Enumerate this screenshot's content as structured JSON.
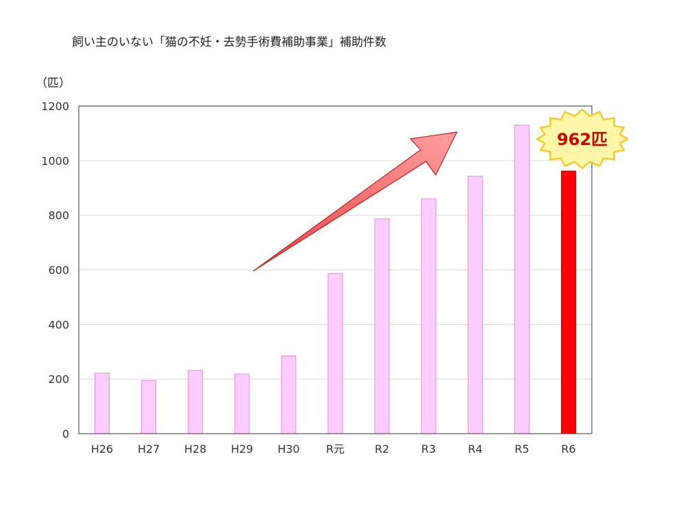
{
  "chart_data": {
    "type": "bar",
    "title": "飼い主のいない「猫の不妊・去勢手術費補助事業」補助件数",
    "ylabel": "（匹）",
    "xlabel": "",
    "categories": [
      "H26",
      "H27",
      "H28",
      "H29",
      "H30",
      "R元",
      "R2",
      "R3",
      "R4",
      "R5",
      "R6"
    ],
    "values": [
      222,
      195,
      232,
      218,
      285,
      587,
      787,
      860,
      943,
      1130,
      962
    ],
    "ylim": [
      0,
      1200
    ],
    "yticks": [
      0,
      200,
      400,
      600,
      800,
      1000,
      1200
    ],
    "grid": true,
    "bar_color": "#ffccff",
    "bar_edge_color": "#e68ae6",
    "highlight_color": "#ff0000",
    "highlight_index": 10,
    "annotation": {
      "text": "962匹",
      "badge_fill": "#fff6a8",
      "badge_edge": "#f2cc2e"
    },
    "arrow_color": "#ff7a7a"
  }
}
